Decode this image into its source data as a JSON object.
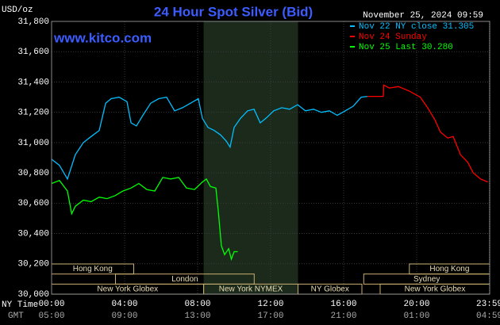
{
  "chart_data": {
    "type": "line",
    "title": "24 Hour Spot Silver (Bid)",
    "unit_label": "USD/oz",
    "source": "www.kitco.com",
    "timestamp": "November 25, 2024 09:59",
    "x_row_labels": [
      "NY Time",
      "GMT"
    ],
    "xlim": [
      0,
      24
    ],
    "ylim": [
      30000,
      31800
    ],
    "xticks": [
      {
        "value": 0,
        "label": "00:00"
      },
      {
        "value": 4,
        "label": "04:00"
      },
      {
        "value": 8,
        "label": "08:00"
      },
      {
        "value": 12,
        "label": "12:00"
      },
      {
        "value": 16,
        "label": "16:00"
      },
      {
        "value": 20,
        "label": "20:00"
      },
      {
        "value": 23.98,
        "label": "23:59"
      }
    ],
    "x2ticklabels": [
      "05:00",
      "09:00",
      "13:00",
      "17:00",
      "21:00",
      "01:00",
      "04:59"
    ],
    "yticks": [
      {
        "value": 30000,
        "label": "30,000"
      },
      {
        "value": 30200,
        "label": "30,200"
      },
      {
        "value": 30400,
        "label": "30,400"
      },
      {
        "value": 30600,
        "label": "30,600"
      },
      {
        "value": 30800,
        "label": "30,800"
      },
      {
        "value": 31000,
        "label": "31,000"
      },
      {
        "value": 31200,
        "label": "31,200"
      },
      {
        "value": 31400,
        "label": "31,400"
      },
      {
        "value": 31600,
        "label": "31,600"
      },
      {
        "value": 31800,
        "label": "31,800"
      }
    ],
    "grid": true,
    "highlight_x": [
      8.33,
      13.5
    ],
    "sessions": [
      [
        {
          "label": "Hong Kong",
          "start": 0,
          "end": 4.5
        },
        {
          "label": "Hong Kong",
          "start": 19.6,
          "end": 24
        }
      ],
      [
        {
          "label": "London",
          "start": 3.5,
          "end": 11.1
        },
        {
          "label": "Sydney",
          "start": 17.1,
          "end": 24
        }
      ],
      [
        {
          "label": "New York Globex",
          "start": 0,
          "end": 8.33
        },
        {
          "label": "New York NYMEX",
          "start": 8.33,
          "end": 13.5
        },
        {
          "label": "NY Globex",
          "start": 13.5,
          "end": 17
        },
        {
          "label": "New York Globex",
          "start": 18,
          "end": 24
        }
      ]
    ],
    "series": [
      {
        "name": "Nov 22 NY close 31.305",
        "color": "#00bfff",
        "x": [
          0,
          0.43,
          0.87,
          1.3,
          1.74,
          2.17,
          2.61,
          2.96,
          3.26,
          3.7,
          4.13,
          4.35,
          4.65,
          5.0,
          5.43,
          5.87,
          6.3,
          6.74,
          7.17,
          7.61,
          8.04,
          8.26,
          8.57,
          8.91,
          9.26,
          9.57,
          9.78,
          10.0,
          10.35,
          10.74,
          11.09,
          11.43,
          11.74,
          12.17,
          12.61,
          13.04,
          13.48,
          13.91,
          14.35,
          14.78,
          15.22,
          15.65,
          16.09,
          16.52,
          16.96,
          17.3
        ],
        "values": [
          30890,
          30850,
          30760,
          30920,
          31000,
          31040,
          31080,
          31260,
          31290,
          31300,
          31270,
          31130,
          31110,
          31180,
          31260,
          31290,
          31300,
          31210,
          31230,
          31260,
          31290,
          31160,
          31100,
          31080,
          31050,
          31010,
          30970,
          31100,
          31160,
          31210,
          31220,
          31130,
          31160,
          31210,
          31230,
          31220,
          31250,
          31210,
          31220,
          31200,
          31210,
          31180,
          31210,
          31240,
          31300,
          31305
        ]
      },
      {
        "name": "Nov 24 Sunday",
        "color": "#ff0000",
        "x": [
          17.3,
          18.17,
          18.2,
          18.5,
          19.0,
          19.6,
          20.2,
          20.6,
          21.0,
          21.3,
          21.7,
          22.0,
          22.4,
          22.8,
          23.1,
          23.5,
          23.9
        ],
        "values": [
          31305,
          31305,
          31380,
          31360,
          31370,
          31340,
          31300,
          31230,
          31150,
          31070,
          31030,
          31040,
          30920,
          30870,
          30800,
          30760,
          30740
        ]
      },
      {
        "name": "Nov 25 Last 30.280",
        "color": "#00ff00",
        "x": [
          0,
          0.43,
          0.87,
          1.1,
          1.3,
          1.74,
          2.17,
          2.61,
          3.04,
          3.48,
          3.91,
          4.35,
          4.78,
          5.22,
          5.65,
          6.09,
          6.52,
          6.96,
          7.39,
          7.83,
          8.26,
          8.48,
          8.7,
          9.0,
          9.13,
          9.3,
          9.48,
          9.7,
          9.85,
          10.0,
          10.2
        ],
        "values": [
          30730,
          30750,
          30680,
          30530,
          30580,
          30620,
          30610,
          30640,
          30630,
          30650,
          30680,
          30700,
          30730,
          30690,
          30680,
          30770,
          30760,
          30770,
          30700,
          30690,
          30740,
          30760,
          30710,
          30700,
          30550,
          30320,
          30260,
          30300,
          30230,
          30280,
          30280
        ]
      }
    ]
  }
}
